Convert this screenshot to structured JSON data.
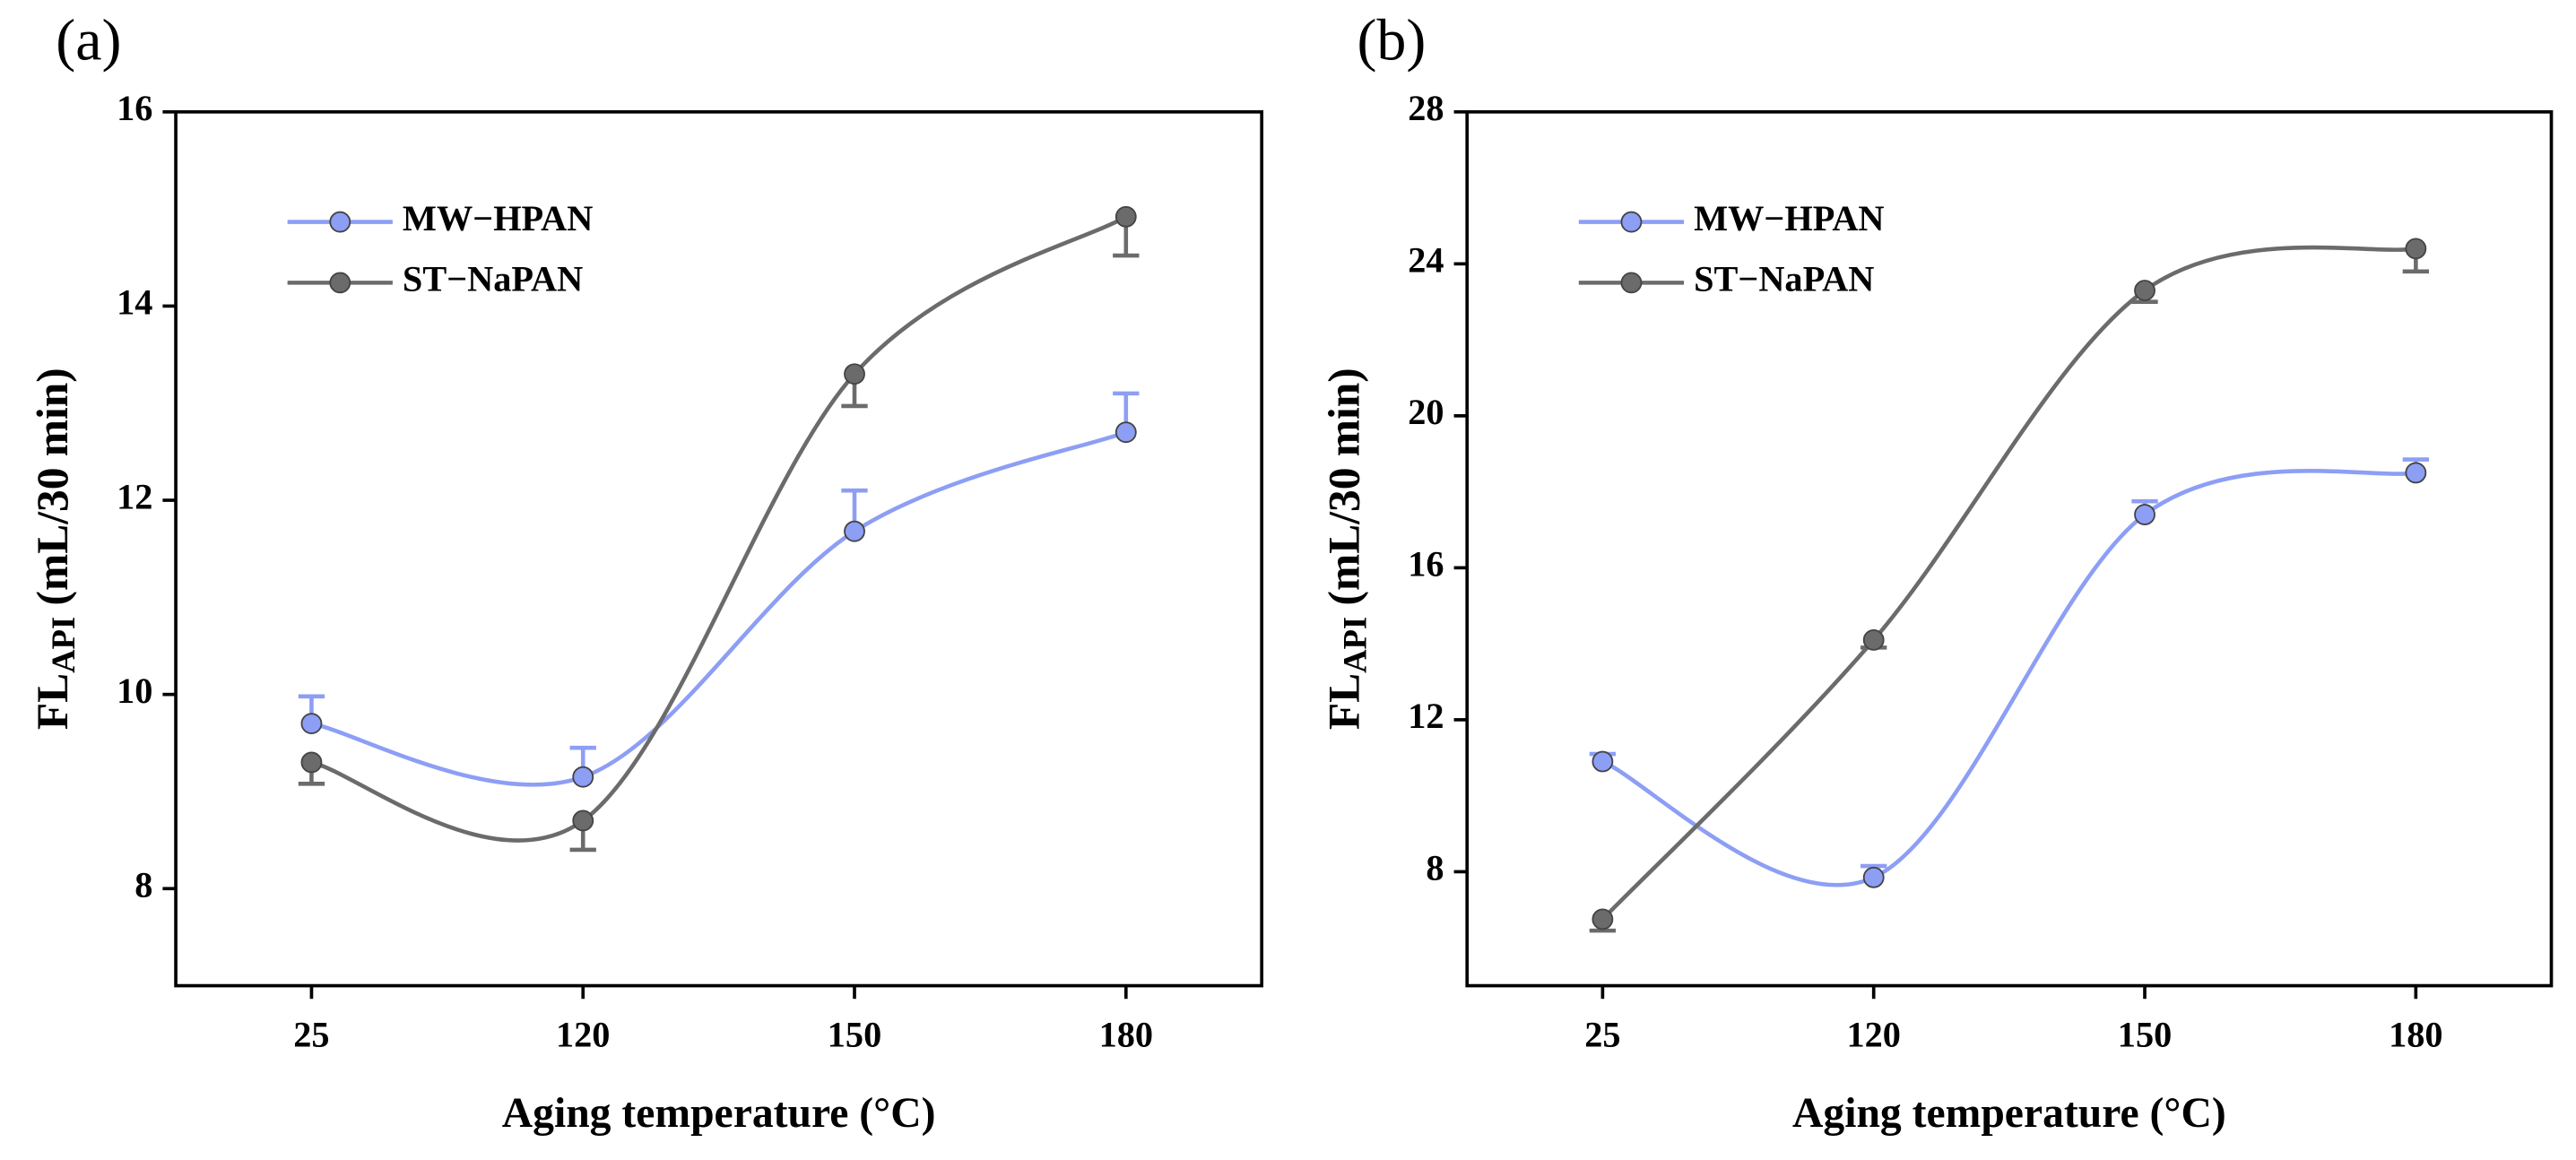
{
  "chart_data": [
    {
      "type": "line",
      "panel_label": "(a)",
      "xlabel": "Aging temperature (°C)",
      "ylabel": [
        "FL",
        "API",
        " (mL/30 min)"
      ],
      "categories": [
        "25",
        "120",
        "150",
        "180"
      ],
      "ylim": [
        7,
        16
      ],
      "yticks": [
        8,
        10,
        12,
        14,
        16
      ],
      "smooth": true,
      "legend": "upper left",
      "series": [
        {
          "name": "MW−HPAN",
          "color": "#8d9ef5",
          "values": [
            9.7,
            9.15,
            11.68,
            12.7
          ],
          "errors": [
            0.28,
            0.3,
            0.42,
            0.4
          ],
          "error_side": "plus"
        },
        {
          "name": "ST−NaPAN",
          "color": "#6b6b6b",
          "values": [
            9.3,
            8.7,
            13.3,
            14.92
          ],
          "errors": [
            0.22,
            0.3,
            0.33,
            0.4
          ],
          "error_side": "minus"
        }
      ]
    },
    {
      "type": "line",
      "panel_label": "(b)",
      "xlabel": "Aging temperature (°C)",
      "ylabel": [
        "FL",
        "API",
        " (mL/30 min)"
      ],
      "categories": [
        "25",
        "120",
        "150",
        "180"
      ],
      "ylim": [
        5,
        28
      ],
      "yticks": [
        8,
        12,
        16,
        20,
        24,
        28
      ],
      "smooth": true,
      "legend": "upper left",
      "series": [
        {
          "name": "MW−HPAN",
          "color": "#8d9ef5",
          "values": [
            10.9,
            7.85,
            17.4,
            18.5
          ],
          "errors": [
            0.2,
            0.3,
            0.35,
            0.35
          ],
          "error_side": "plus"
        },
        {
          "name": "ST−NaPAN",
          "color": "#6b6b6b",
          "values": [
            6.75,
            14.1,
            23.3,
            24.4
          ],
          "errors": [
            0.3,
            0.2,
            0.3,
            0.6
          ],
          "error_side": "minus"
        }
      ]
    }
  ]
}
